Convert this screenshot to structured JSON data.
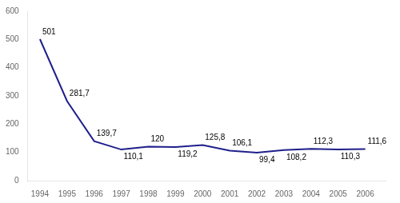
{
  "chart_data": {
    "type": "line",
    "x": [
      1994,
      1995,
      1996,
      1997,
      1998,
      1999,
      2000,
      2001,
      2002,
      2003,
      2004,
      2005,
      2006
    ],
    "values": [
      501,
      281.7,
      139.7,
      110.1,
      120,
      119.2,
      125.8,
      106.1,
      99.4,
      108.2,
      112.3,
      110.3,
      111.6
    ],
    "value_labels": [
      "501",
      "281,7",
      "139,7",
      "110,1",
      "120",
      "119,2",
      "125,8",
      "106,1",
      "99,4",
      "108,2",
      "112,3",
      "110,3",
      "111,6"
    ],
    "data_labels": true,
    "color": "#1F1F8B",
    "xlim": [
      1993.55,
      2006.75
    ],
    "xticks": [
      1994,
      1995,
      1996,
      1997,
      1998,
      1999,
      2000,
      2001,
      2002,
      2003,
      2004,
      2005,
      2006
    ],
    "ylim": [
      0,
      600
    ],
    "yticks": [
      0,
      100,
      200,
      300,
      400,
      500,
      600
    ],
    "grid": false
  }
}
